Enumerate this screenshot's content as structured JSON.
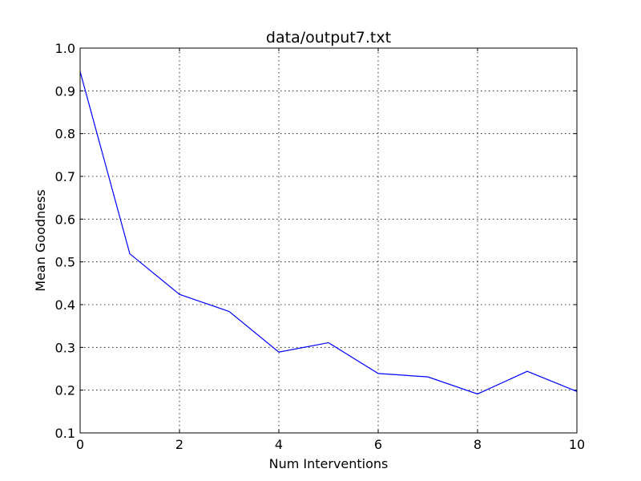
{
  "chart_data": {
    "type": "line",
    "title": "data/output7.txt",
    "xlabel": "Num Interventions",
    "ylabel": "Mean Goodness",
    "xlim": [
      0,
      10
    ],
    "ylim": [
      0.1,
      1.0
    ],
    "xticks": [
      0,
      2,
      4,
      6,
      8,
      10
    ],
    "yticks": [
      0.1,
      0.2,
      0.3,
      0.4,
      0.5,
      0.6,
      0.7,
      0.8,
      0.9,
      1.0
    ],
    "xtick_labels": [
      "0",
      "2",
      "4",
      "6",
      "8",
      "10"
    ],
    "ytick_labels": [
      "0.1",
      "0.2",
      "0.3",
      "0.4",
      "0.5",
      "0.6",
      "0.7",
      "0.8",
      "0.9",
      "1.0"
    ],
    "grid": true,
    "x": [
      0,
      1,
      2,
      3,
      4,
      5,
      6,
      7,
      8,
      9,
      10
    ],
    "series": [
      {
        "values": [
          0.945,
          0.519,
          0.424,
          0.384,
          0.289,
          0.311,
          0.239,
          0.231,
          0.191,
          0.244,
          0.197
        ],
        "color": "#0000ff"
      }
    ]
  }
}
